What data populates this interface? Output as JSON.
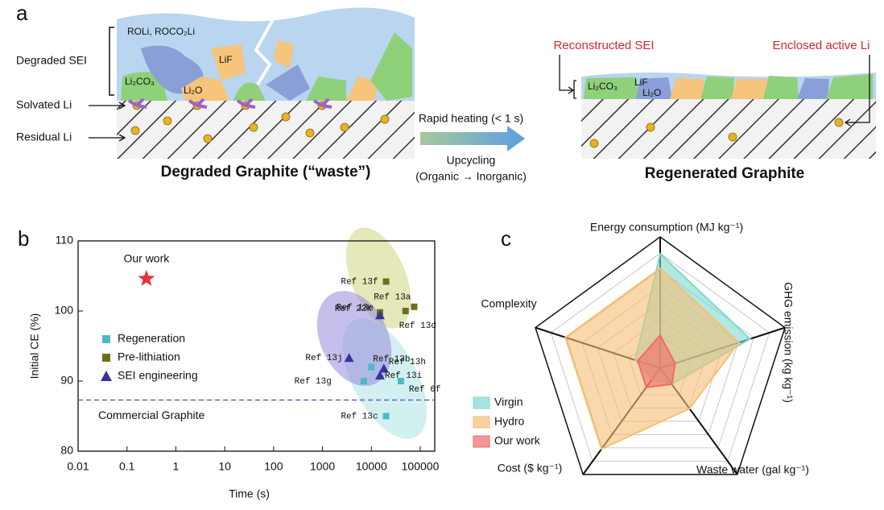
{
  "panel_a": {
    "label": "a",
    "left": {
      "title": "Degraded Graphite (“waste”)",
      "degraded_sei": "Degraded SEI",
      "solvated_li": "Solvated Li",
      "residual_li": "Residual Li",
      "species": [
        "ROLi, ROCO₂Li",
        "LiF",
        "Li₂CO₃",
        "Li₂O"
      ]
    },
    "arrow": {
      "top": "Rapid heating (< 1 s)",
      "bottom": [
        "Upcycling",
        "(Organic → Inorganic)"
      ]
    },
    "right": {
      "title": "Regenerated Graphite",
      "reconstructed_sei": "Reconstructed SEI",
      "enclosed_li": "Enclosed active Li",
      "species": [
        "Li₂CO₃",
        "LiF",
        "Li₂O"
      ]
    }
  },
  "chart_data": [
    {
      "panel": "b",
      "type": "scatter",
      "xlabel": "Time (s)",
      "ylabel": "Initial CE (%)",
      "xscale": "log",
      "xlim": [
        0.01,
        100000
      ],
      "xticks": [
        0.01,
        0.1,
        1,
        10,
        100,
        1000,
        10000,
        100000
      ],
      "ylim": [
        80,
        110
      ],
      "yticks": [
        80,
        90,
        100,
        110
      ],
      "reference_line": {
        "value": 87.3,
        "label": "Commercial Graphite",
        "color": "#6a5acd"
      },
      "series": [
        {
          "name": "Our work",
          "marker": "star",
          "color": "#e8323c",
          "x": [
            0.25
          ],
          "values": [
            104.6
          ]
        },
        {
          "name": "Regeneration",
          "marker": "square",
          "color": "#4fb8c4",
          "x": [
            7000,
            10000,
            40000,
            20000
          ],
          "values": [
            90,
            92,
            90,
            85
          ],
          "labels": [
            "Ref 13g",
            "Ref 13b",
            "Ref 6f",
            "Ref 13c"
          ]
        },
        {
          "name": "Pre-lithiation",
          "marker": "square",
          "color": "#6f6f1a",
          "x": [
            20000,
            75000,
            15000,
            50000
          ],
          "values": [
            104.2,
            100.6,
            99.8,
            100
          ],
          "labels": [
            "Ref 13f",
            "Ref 13a",
            "Ref 13e",
            "Ref 13d"
          ]
        },
        {
          "name": "SEI engineering",
          "marker": "triangle",
          "color": "#34349e",
          "x": [
            15000,
            3500,
            18000,
            15000
          ],
          "values": [
            99.4,
            93.3,
            91.8,
            90.8
          ],
          "labels": [
            "Ref 22k",
            "Ref 13j",
            "Ref 13h",
            "Ref 13i"
          ]
        }
      ]
    },
    {
      "panel": "c",
      "type": "radar",
      "axes": [
        "Energy consumption (MJ kg⁻¹)",
        "GHG emission (kg kg⁻¹)",
        "Waste water (gal kg⁻¹)",
        "Cost ($ kg⁻¹)",
        "Complexity"
      ],
      "rlim": [
        0,
        1
      ],
      "series": [
        {
          "name": "Virgin",
          "color": "#7fd8cf",
          "values": [
            0.87,
            0.72,
            0.15,
            0.1,
            0.2
          ]
        },
        {
          "name": "Hydro",
          "color": "#f7be74",
          "values": [
            0.76,
            0.63,
            0.38,
            0.76,
            0.76
          ]
        },
        {
          "name": "Our work",
          "color": "#f06a6a",
          "values": [
            0.25,
            0.12,
            0.15,
            0.18,
            0.18
          ]
        }
      ]
    }
  ]
}
